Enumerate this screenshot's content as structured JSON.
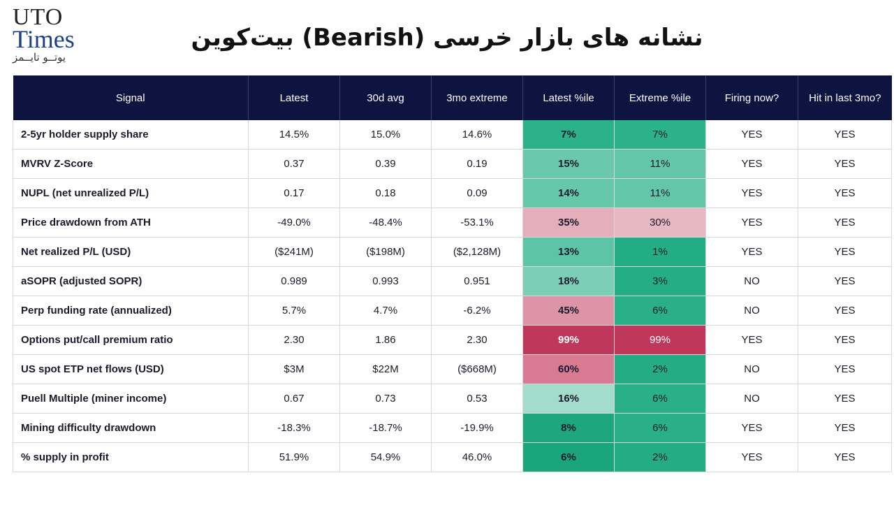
{
  "logo": {
    "line1": "UTO",
    "line2": "Times",
    "line3": "یوتــو تایــمز"
  },
  "title": "نشانه های بازار خرسی (Bearish) بیت‌کوین",
  "table": {
    "headers": [
      "Signal",
      "Latest",
      "30d avg",
      "3mo extreme",
      "Latest %ile",
      "Extreme %ile",
      "Firing now?",
      "Hit in last 3mo?"
    ],
    "rows": [
      {
        "signal": "2-5yr holder supply share",
        "latest": "14.5%",
        "avg30": "15.0%",
        "extreme3mo": "14.6%",
        "latest_pct": "7%",
        "extreme_pct": "7%",
        "firing": "YES",
        "hit": "YES",
        "latest_color": "#2bb28a",
        "extreme_color": "#2bb28a"
      },
      {
        "signal": "MVRV Z-Score",
        "latest": "0.37",
        "avg30": "0.39",
        "extreme3mo": "0.19",
        "latest_pct": "15%",
        "extreme_pct": "11%",
        "firing": "YES",
        "hit": "YES",
        "latest_color": "#6ac9ad",
        "extreme_color": "#64c6a9"
      },
      {
        "signal": "NUPL (net unrealized P/L)",
        "latest": "0.17",
        "avg30": "0.18",
        "extreme3mo": "0.09",
        "latest_pct": "14%",
        "extreme_pct": "11%",
        "firing": "YES",
        "hit": "YES",
        "latest_color": "#66c8ab",
        "extreme_color": "#64c6a9"
      },
      {
        "signal": "Price drawdown from ATH",
        "latest": "-49.0%",
        "avg30": "-48.4%",
        "extreme3mo": "-53.1%",
        "latest_pct": "35%",
        "extreme_pct": "30%",
        "firing": "YES",
        "hit": "YES",
        "latest_color": "#e4aebb",
        "extreme_color": "#e7b7c2"
      },
      {
        "signal": "Net realized P/L (USD)",
        "latest": "($241M)",
        "avg30": "($198M)",
        "extreme3mo": "($2,128M)",
        "latest_pct": "13%",
        "extreme_pct": "1%",
        "firing": "YES",
        "hit": "YES",
        "latest_color": "#5ec4a6",
        "extreme_color": "#22ad84"
      },
      {
        "signal": "aSOPR (adjusted SOPR)",
        "latest": "0.989",
        "avg30": "0.993",
        "extreme3mo": "0.951",
        "latest_pct": "18%",
        "extreme_pct": "3%",
        "firing": "NO",
        "hit": "YES",
        "latest_color": "#7ccfb6",
        "extreme_color": "#25ae86"
      },
      {
        "signal": "Perp funding rate (annualized)",
        "latest": "5.7%",
        "avg30": "4.7%",
        "extreme3mo": "-6.2%",
        "latest_pct": "45%",
        "extreme_pct": "6%",
        "firing": "NO",
        "hit": "YES",
        "latest_color": "#dc94a6",
        "extreme_color": "#2ab089"
      },
      {
        "signal": "Options put/call premium ratio",
        "latest": "2.30",
        "avg30": "1.86",
        "extreme3mo": "2.30",
        "latest_pct": "99%",
        "extreme_pct": "99%",
        "firing": "YES",
        "hit": "YES",
        "latest_color": "#c0375c",
        "extreme_color": "#c0375c"
      },
      {
        "signal": "US spot ETP net flows (USD)",
        "latest": "$3M",
        "avg30": "$22M",
        "extreme3mo": "($668M)",
        "latest_pct": "60%",
        "extreme_pct": "2%",
        "firing": "NO",
        "hit": "YES",
        "latest_color": "#d77a92",
        "extreme_color": "#24ad85"
      },
      {
        "signal": "Puell Multiple (miner income)",
        "latest": "0.67",
        "avg30": "0.73",
        "extreme3mo": "0.53",
        "latest_pct": "16%",
        "extreme_pct": "6%",
        "firing": "NO",
        "hit": "YES",
        "latest_color": "#a3dccb",
        "extreme_color": "#2ab089"
      },
      {
        "signal": "Mining difficulty drawdown",
        "latest": "-18.3%",
        "avg30": "-18.7%",
        "extreme3mo": "-19.9%",
        "latest_pct": "8%",
        "extreme_pct": "6%",
        "firing": "YES",
        "hit": "YES",
        "latest_color": "#1ea67e",
        "extreme_color": "#2ab089"
      },
      {
        "signal": "% supply in profit",
        "latest": "51.9%",
        "avg30": "54.9%",
        "extreme3mo": "46.0%",
        "latest_pct": "6%",
        "extreme_pct": "2%",
        "firing": "YES",
        "hit": "YES",
        "latest_color": "#1aa57c",
        "extreme_color": "#24ad85"
      }
    ]
  }
}
